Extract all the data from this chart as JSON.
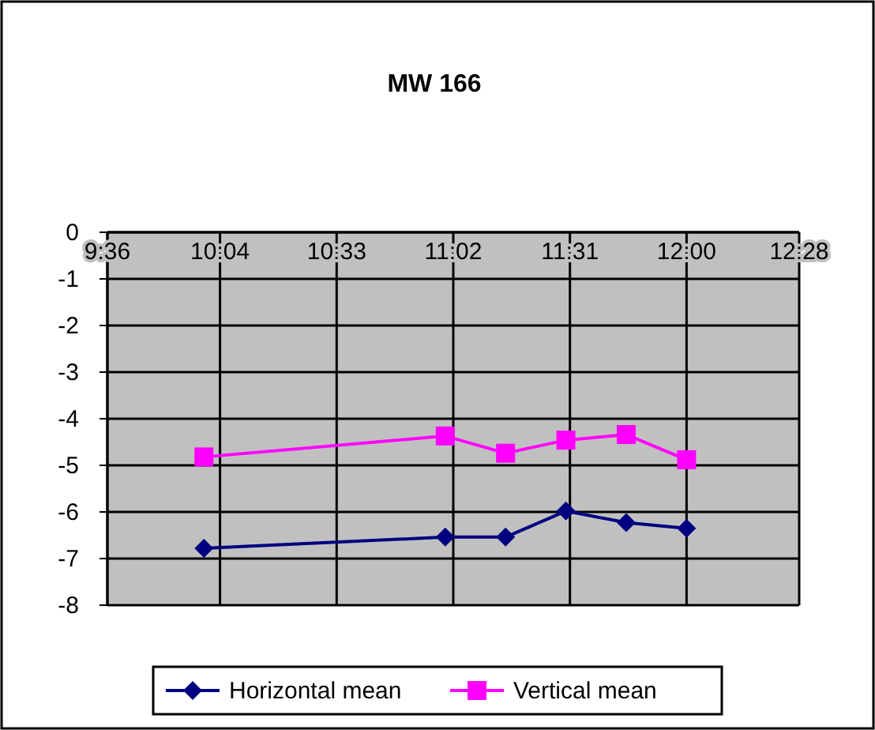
{
  "chart_data": {
    "type": "line",
    "title": "MW 166",
    "x": [
      10.0,
      11.0,
      11.25,
      11.5,
      11.75,
      12.0
    ],
    "series": [
      {
        "name": "Horizontal mean",
        "color": "#000080",
        "marker": "diamond",
        "values": [
          -6.78,
          -6.54,
          -6.54,
          -5.98,
          -6.23,
          -6.35
        ]
      },
      {
        "name": "Vertical mean",
        "color": "#ff00ff",
        "marker": "square",
        "values": [
          -4.82,
          -4.37,
          -4.74,
          -4.46,
          -4.34,
          -4.88
        ]
      }
    ],
    "xlim": [
      9.6,
      12.4667
    ],
    "xticks": [
      {
        "value": 9.6,
        "label": "9:36"
      },
      {
        "value": 10.0667,
        "label": "10:04"
      },
      {
        "value": 10.55,
        "label": "10:33"
      },
      {
        "value": 11.0333,
        "label": "11:02"
      },
      {
        "value": 11.5167,
        "label": "11:31"
      },
      {
        "value": 12.0,
        "label": "12:00"
      },
      {
        "value": 12.4667,
        "label": "12:28"
      }
    ],
    "ylim": [
      -8,
      0
    ],
    "yticks": [
      0,
      -1,
      -2,
      -3,
      -4,
      -5,
      -6,
      -7,
      -8
    ],
    "grid": true,
    "legend": "bottom"
  }
}
